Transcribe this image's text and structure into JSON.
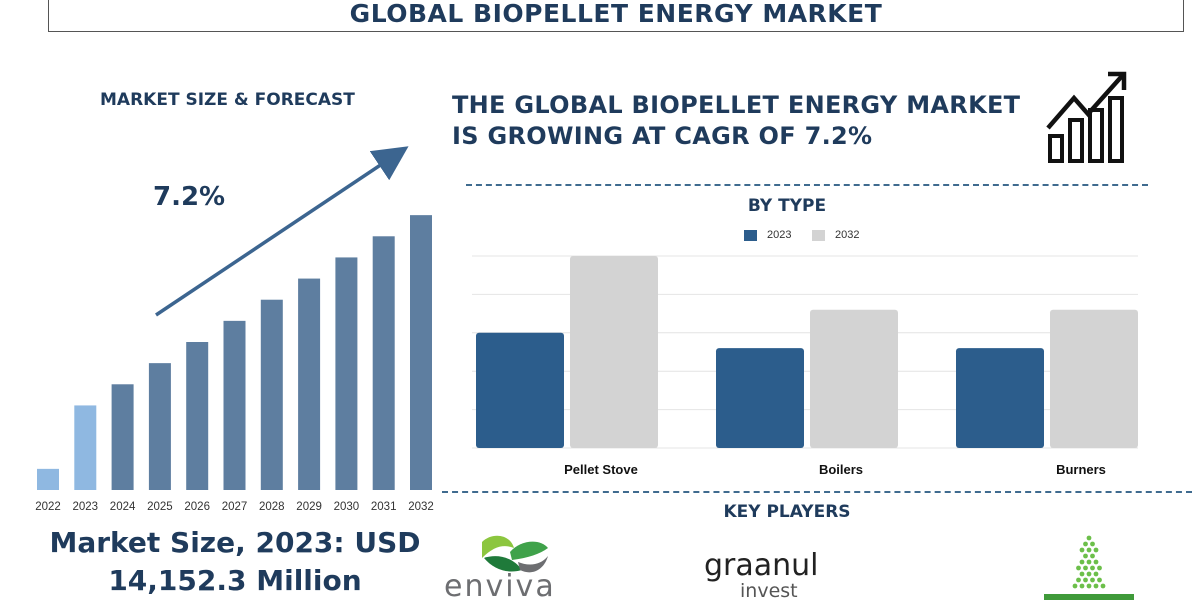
{
  "header": {
    "title": "GLOBAL BIOPELLET ENERGY MARKET"
  },
  "left_panel": {
    "forecast_title": "MARKET SIZE & FORECAST",
    "cagr_label": "7.2%",
    "market_size_line1": "Market Size, 2023: USD",
    "market_size_line2": "14,152.3 Million"
  },
  "right_panel": {
    "headline_line1": "THE GLOBAL BIOPELLET ENERGY MARKET",
    "headline_line2": "IS GROWING AT CAGR OF 7.2%",
    "by_type_title": "BY TYPE",
    "key_players_title": "KEY PLAYERS"
  },
  "logos": {
    "enviva": "enviva",
    "graanul_line1": "graanul",
    "graanul_line2": "invest"
  },
  "colors": {
    "navy": "#1f3b5c",
    "bar_dark": "#5e7ea0",
    "bar_light": "#8fb8e1",
    "series_2023": "#2c5d8c",
    "series_2032": "#d3d3d3",
    "grid": "#e4e4e4"
  },
  "chart_data": [
    {
      "type": "bar",
      "categories": [
        "2022",
        "2023",
        "2024",
        "2025",
        "2026",
        "2027",
        "2028",
        "2029",
        "2030",
        "2031",
        "2032"
      ],
      "values": [
        1,
        4,
        5,
        6,
        7,
        8,
        9,
        10,
        11,
        12,
        13
      ],
      "highlighted": [
        "2022",
        "2023"
      ],
      "title": "MARKET SIZE & FORECAST",
      "trend_annotation": "7.2%",
      "grid": false,
      "ylim": [
        0,
        14
      ]
    },
    {
      "type": "bar",
      "title": "BY TYPE",
      "categories": [
        "Pellet Stove",
        "Boilers",
        "Burners"
      ],
      "series": [
        {
          "name": "2023",
          "values": [
            3,
            2.6,
            2.6
          ]
        },
        {
          "name": "2032",
          "values": [
            5,
            3.6,
            3.6
          ]
        }
      ],
      "ylim": [
        0,
        5
      ],
      "grid": true,
      "legend": "top-center"
    }
  ]
}
